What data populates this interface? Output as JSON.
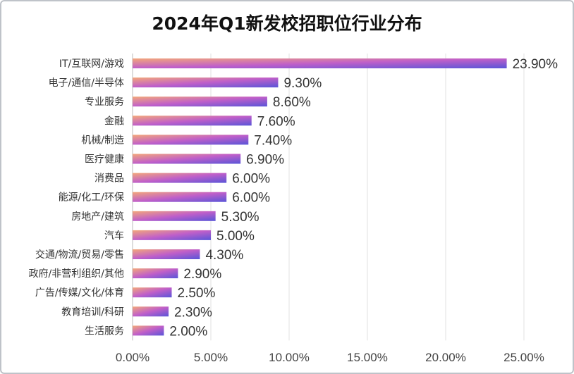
{
  "chart_data": {
    "type": "bar",
    "orientation": "horizontal",
    "title": "2024年Q1新发校招职位行业分布",
    "categories": [
      "IT/互联网/游戏",
      "电子/通信/半导体",
      "专业服务",
      "金融",
      "机械/制造",
      "医疗健康",
      "消费品",
      "能源/化工/环保",
      "房地产/建筑",
      "汽车",
      "交通/物流/贸易/零售",
      "政府/非营利组织/其他",
      "广告/传媒/文化/体育",
      "教育培训/科研",
      "生活服务"
    ],
    "values": [
      23.9,
      9.3,
      8.6,
      7.6,
      7.4,
      6.9,
      6.0,
      6.0,
      5.3,
      5.0,
      4.3,
      2.9,
      2.5,
      2.3,
      2.0
    ],
    "value_labels": [
      "23.90%",
      "9.30%",
      "8.60%",
      "7.60%",
      "7.40%",
      "6.90%",
      "6.00%",
      "6.00%",
      "5.30%",
      "5.00%",
      "4.30%",
      "2.90%",
      "2.50%",
      "2.30%",
      "2.00%"
    ],
    "xlim": [
      0,
      25
    ],
    "x_ticks": [
      0,
      5,
      10,
      15,
      20,
      25
    ],
    "x_tick_labels": [
      "0.00%",
      "5.00%",
      "10.00%",
      "15.00%",
      "20.00%",
      "25.00%"
    ],
    "grid": "vertical",
    "colors": {
      "bar_start": "#f3a77a",
      "bar_mid": "#c05fc9",
      "bar_end": "#5a55d8",
      "grid": "#e2e2e2",
      "axis": "#bbbbbb"
    }
  }
}
